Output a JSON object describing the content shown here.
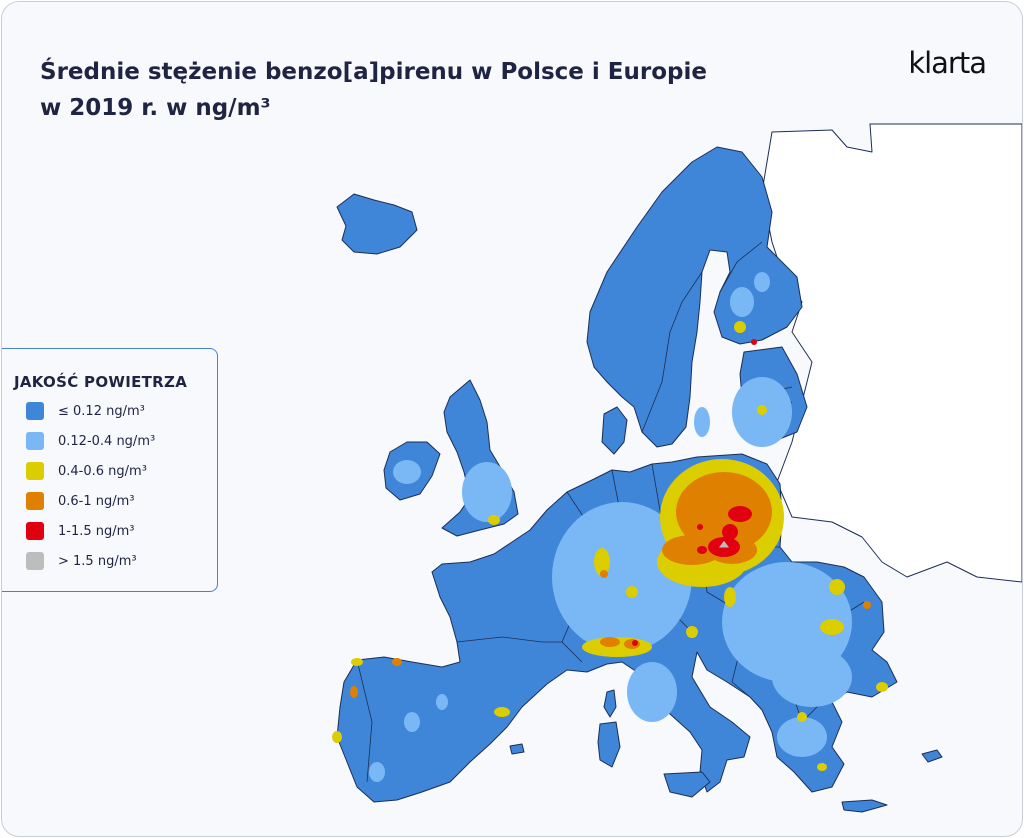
{
  "title": {
    "line1": "Średnie stężenie benzo[a]pirenu w Polsce i Europie",
    "line2": "w 2019 r. w ng/m³"
  },
  "brand": "klarta",
  "legend": {
    "title": "JAKOŚĆ POWIETRZA",
    "items": [
      {
        "label": "≤ 0.12 ng/m³",
        "color": "#3f86d8",
        "icon": "swatch-dark-blue"
      },
      {
        "label": "0.12-0.4 ng/m³",
        "color": "#7ab8f5",
        "icon": "swatch-light-blue"
      },
      {
        "label": "0.4-0.6 ng/m³",
        "color": "#dccd00",
        "icon": "swatch-yellow"
      },
      {
        "label": "0.6-1 ng/m³",
        "color": "#df8000",
        "icon": "swatch-orange"
      },
      {
        "label": "1-1.5 ng/m³",
        "color": "#e00010",
        "icon": "swatch-red"
      },
      {
        "label": "> 1.5 ng/m³",
        "color": "#bdbdbd",
        "icon": "swatch-gray"
      }
    ]
  },
  "map": {
    "region": "Europe",
    "colors": {
      "level1": "#3f86d8",
      "level2": "#7ab8f5",
      "level3": "#dccd00",
      "level4": "#df8000",
      "level5": "#e00010",
      "level6": "#bdbdbd",
      "outline": "#1c2e55",
      "noData": "#ffffff"
    }
  }
}
